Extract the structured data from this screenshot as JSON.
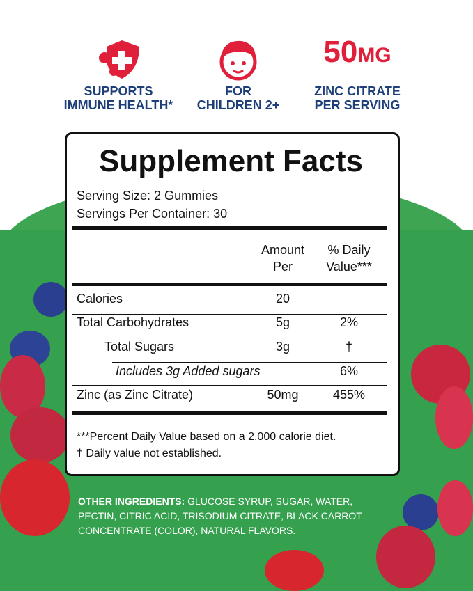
{
  "features": [
    {
      "icon": "shield-virus-icon",
      "label_line1": "SUPPORTS",
      "label_line2": "IMMUNE HEALTH*"
    },
    {
      "icon": "child-face-icon",
      "label_line1": "FOR",
      "label_line2": "CHILDREN 2+"
    },
    {
      "value": "50",
      "unit": "MG",
      "label_line1": "ZINC CITRATE",
      "label_line2": "PER SERVING"
    }
  ],
  "facts": {
    "title": "Supplement Facts",
    "serving_size": "Serving Size: 2 Gummies",
    "servings_per_container": "Servings Per Container: 30",
    "col_amount": [
      "Amount",
      "Per"
    ],
    "col_dv": [
      "% Daily",
      "Value***"
    ],
    "rows": [
      {
        "name": "Calories",
        "amount": "20",
        "dv": ""
      },
      {
        "name": "Total Carbohydrates",
        "amount": "5g",
        "dv": "2%"
      },
      {
        "name": "Total Sugars",
        "amount": "3g",
        "dv": "†"
      },
      {
        "name": "Includes 3g Added sugars",
        "amount": "",
        "dv": "6%"
      },
      {
        "name": "Zinc (as Zinc Citrate)",
        "amount": "50mg",
        "dv": "455%"
      }
    ],
    "footnote1": "***Percent Daily Value based on a 2,000 calorie diet.",
    "footnote2": "† Daily value not established."
  },
  "ingredients": {
    "label": "OTHER INGREDIENTS:",
    "text": " GLUCOSE SYRUP, SUGAR, WATER, PECTIN, CITRIC ACID, TRISODIUM CITRATE, BLACK CARROT CONCENTRATE (COLOR), NATURAL FLAVORS."
  },
  "colors": {
    "green": "#3ea552",
    "red": "#e0203a",
    "navy": "#1e3f7a"
  }
}
